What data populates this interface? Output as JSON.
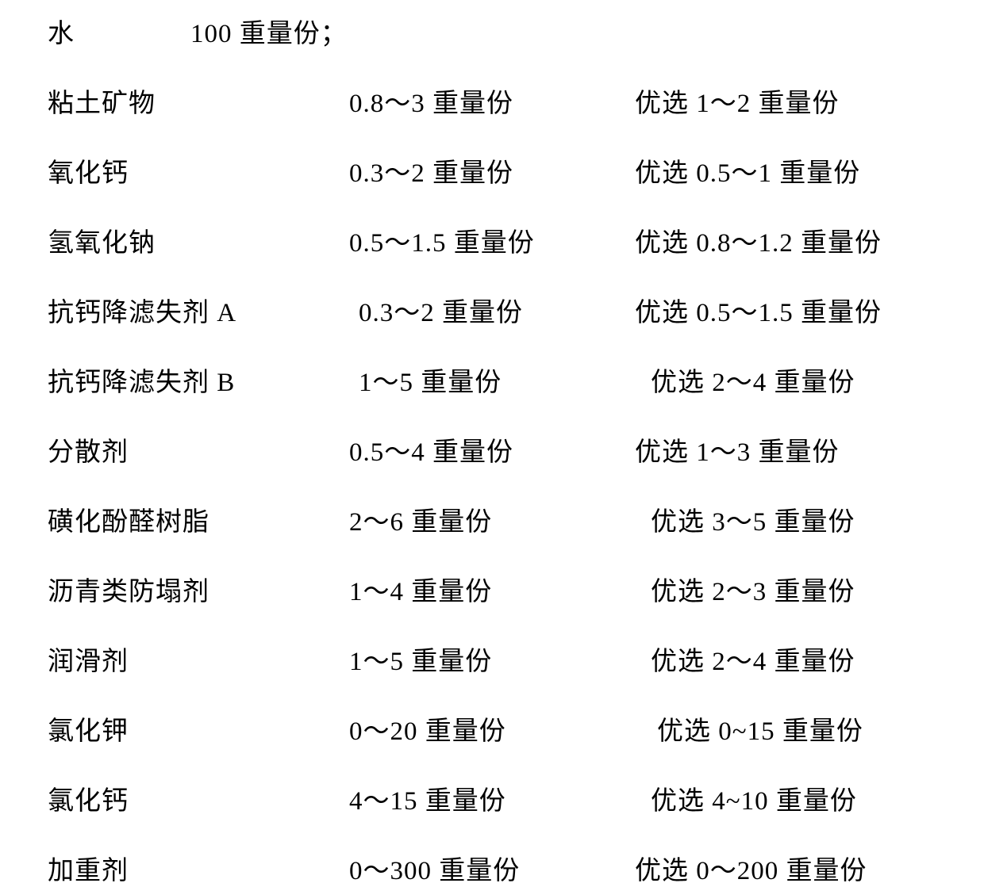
{
  "header": {
    "label": "水",
    "value": "100 重量份；"
  },
  "rows": [
    {
      "name": "粘土矿物",
      "range": "0.8～3 重量份",
      "preferred": "优选 1～2 重量份"
    },
    {
      "name": "氧化钙",
      "range": "0.3～2 重量份",
      "preferred": "优选 0.5～1 重量份"
    },
    {
      "name": "氢氧化钠",
      "range": "0.5～1.5 重量份",
      "preferred": "优选 0.8～1.2 重量份"
    },
    {
      "name": "抗钙降滤失剂 A",
      "range": "0.3～2 重量份",
      "preferred": "优选 0.5～1.5 重量份",
      "rangeIndent": "indent-sm"
    },
    {
      "name": "抗钙降滤失剂 B",
      "range": "1～5 重量份",
      "preferred": "优选 2～4 重量份",
      "rangeIndent": "indent-sm",
      "prefIndent": "indent-md"
    },
    {
      "name": "分散剂",
      "range": "0.5～4 重量份",
      "preferred": "优选 1～3 重量份"
    },
    {
      "name": "磺化酚醛树脂",
      "range": "2～6 重量份",
      "preferred": "优选 3～5 重量份",
      "prefIndent": "indent-md"
    },
    {
      "name": "沥青类防塌剂",
      "range": "1～4 重量份",
      "preferred": "优选 2～3 重量份",
      "prefIndent": "indent-md"
    },
    {
      "name": "润滑剂",
      "range": "1～5 重量份",
      "preferred": "优选 2～4 重量份",
      "prefIndent": "indent-md"
    },
    {
      "name": "氯化钾",
      "range": "0～20 重量份",
      "preferred": "优选 0~15 重量份",
      "prefIndent": "indent-lg"
    },
    {
      "name": "氯化钙",
      "range": "4～15 重量份",
      "preferred": "优选 4~10 重量份",
      "prefIndent": "indent-md"
    },
    {
      "name": "加重剂",
      "range": "0～300 重量份",
      "preferred": "优选 0～200 重量份"
    }
  ]
}
